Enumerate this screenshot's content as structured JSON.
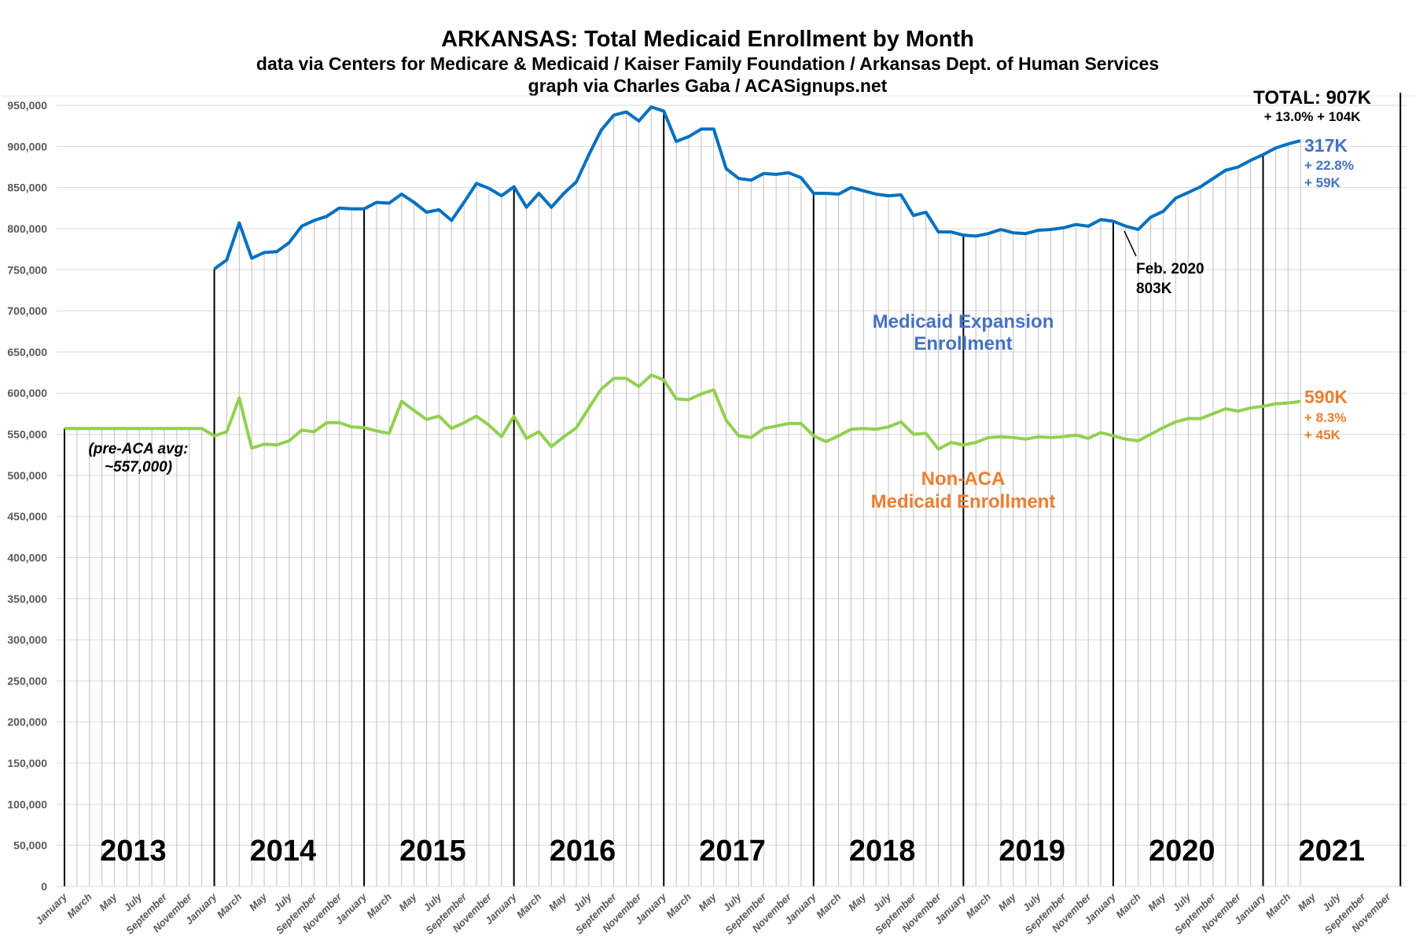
{
  "chart_data": {
    "type": "line",
    "title": "ARKANSAS: Total Medicaid Enrollment by Month",
    "subtitle": "data via Centers for Medicare & Medicaid / Kaiser Family Foundation / Arkansas Dept. of Human Services",
    "credit": "graph via Charles Gaba / ACASignups.net",
    "xlabel": "",
    "ylabel": "",
    "ylim": [
      0,
      950000
    ],
    "yticks": [
      0,
      50000,
      100000,
      150000,
      200000,
      250000,
      300000,
      350000,
      400000,
      450000,
      500000,
      550000,
      600000,
      650000,
      700000,
      750000,
      800000,
      850000,
      900000,
      950000
    ],
    "ytick_labels": [
      "0",
      "50,000",
      "100,000",
      "150,000",
      "200,000",
      "250,000",
      "300,000",
      "350,000",
      "400,000",
      "450,000",
      "500,000",
      "550,000",
      "600,000",
      "650,000",
      "700,000",
      "750,000",
      "800,000",
      "850,000",
      "900,000",
      "950,000"
    ],
    "x_range": [
      "2013-01",
      "2021-12"
    ],
    "xtick_labels": [
      "January",
      "March",
      "May",
      "July",
      "September",
      "November"
    ],
    "years": [
      "2013",
      "2014",
      "2015",
      "2016",
      "2017",
      "2018",
      "2019",
      "2020",
      "2021"
    ],
    "grid": {
      "horizontal": true,
      "vertical_monthly": true
    },
    "colors": {
      "total": "#0070C0",
      "non_aca": "#92D050",
      "expansion_label": "#4472C4",
      "non_aca_label": "#ED7D31"
    },
    "series": [
      {
        "key": "total",
        "start": "2014-01",
        "values": [
          751000,
          762000,
          807000,
          764000,
          771000,
          772000,
          783000,
          803000,
          810000,
          815000,
          825000,
          824000,
          824000,
          832000,
          831000,
          842000,
          832000,
          820000,
          823000,
          810000,
          832000,
          855000,
          849000,
          840000,
          851000,
          826000,
          843000,
          826000,
          843000,
          857000,
          890000,
          920000,
          938000,
          942000,
          931000,
          948000,
          943000,
          906000,
          912000,
          921000,
          921000,
          873000,
          861000,
          859000,
          867000,
          866000,
          868000,
          862000,
          843000,
          843000,
          842000,
          850000,
          846000,
          842000,
          840000,
          841000,
          816000,
          820000,
          796000,
          796000,
          792000,
          791000,
          794000,
          799000,
          795000,
          794000,
          798000,
          799000,
          801000,
          805000,
          803000,
          811000,
          809000,
          803000,
          799000,
          814000,
          821000,
          837000,
          844000,
          851000,
          861000,
          871000,
          875000,
          883000,
          890000,
          898000,
          903000,
          907000
        ]
      },
      {
        "key": "non_aca",
        "start": "2013-01",
        "values": [
          557000,
          557000,
          557000,
          557000,
          557000,
          557000,
          557000,
          557000,
          557000,
          557000,
          557000,
          557000,
          548000,
          553000,
          594000,
          533000,
          538000,
          537000,
          542000,
          555000,
          553000,
          564000,
          564000,
          559000,
          558000,
          554000,
          551000,
          590000,
          579000,
          568000,
          572000,
          557000,
          564000,
          572000,
          561000,
          547000,
          572000,
          545000,
          553000,
          535000,
          547000,
          558000,
          582000,
          605000,
          618000,
          618000,
          608000,
          622000,
          616000,
          593000,
          592000,
          599000,
          604000,
          567000,
          548000,
          546000,
          557000,
          560000,
          563000,
          563000,
          548000,
          541000,
          548000,
          556000,
          557000,
          556000,
          559000,
          565000,
          550000,
          551000,
          532000,
          540000,
          537000,
          540000,
          546000,
          547000,
          546000,
          544000,
          547000,
          546000,
          547000,
          549000,
          545000,
          552000,
          548000,
          544000,
          542000,
          550000,
          558000,
          565000,
          569000,
          569000,
          575000,
          581000,
          578000,
          582000,
          584000,
          587000,
          588000,
          590000
        ]
      }
    ],
    "annotations": {
      "total": "TOTAL: 907K",
      "total_change": "+ 13.0%  + 104K",
      "expansion_value": "317K",
      "expansion_pct": "+ 22.8%",
      "expansion_change": "+ 59K",
      "non_aca_value": "590K",
      "non_aca_pct": "+ 8.3%",
      "non_aca_change": "+ 45K",
      "expansion_label_1": "Medicaid Expansion",
      "expansion_label_2": "Enrollment",
      "non_aca_label_1": "Non-ACA",
      "non_aca_label_2": "Medicaid Enrollment",
      "feb_label_1": "Feb. 2020",
      "feb_label_2": "803K",
      "pre_aca_1": "(pre-ACA avg:",
      "pre_aca_2": "~557,000)"
    }
  }
}
